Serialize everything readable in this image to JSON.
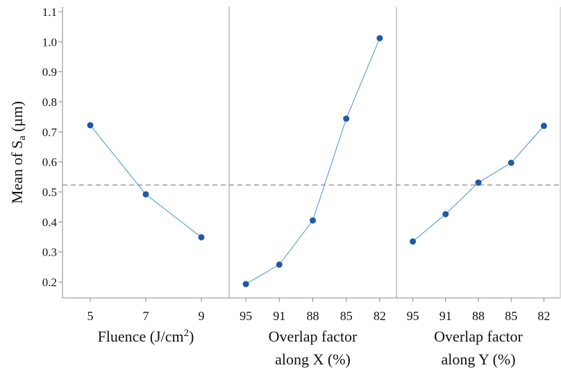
{
  "chart_data": [
    {
      "type": "line",
      "categories": [
        "5",
        "7",
        "9"
      ],
      "values": [
        0.722,
        0.492,
        0.349
      ],
      "x_label": [
        [
          {
            "text": "Fluence (J/cm"
          },
          {
            "text": "2",
            "shift": "super"
          },
          {
            "text": ")"
          }
        ]
      ],
      "y_label": [
        {
          "text": "Mean of S"
        },
        {
          "text": "a",
          "shift": "sub"
        },
        {
          "text": " (µm)"
        }
      ],
      "ylim": [
        0.147,
        1.116
      ],
      "yticks": [
        0.2,
        0.3,
        0.4,
        0.5,
        0.6,
        0.7,
        0.8,
        0.9,
        {
          "value": 1,
          "label": "1.0"
        },
        1.1
      ],
      "reference_line": 0.523,
      "color": "#1f5aa6",
      "line_color": "#4a8fd6"
    },
    {
      "type": "line",
      "categories": [
        "95",
        "91",
        "88",
        "85",
        "82"
      ],
      "values": [
        0.193,
        0.258,
        0.405,
        0.744,
        1.012
      ],
      "x_label": [
        [
          {
            "text": "Overlap factor"
          }
        ],
        [
          {
            "text": "along X (%)"
          }
        ]
      ],
      "color": "#1f5aa6",
      "line_color": "#4a8fd6"
    },
    {
      "type": "line",
      "categories": [
        "95",
        "91",
        "88",
        "85",
        "82"
      ],
      "values": [
        0.335,
        0.426,
        0.531,
        0.597,
        0.72
      ],
      "x_label": [
        [
          {
            "text": "Overlap factor"
          }
        ],
        [
          {
            "text": "along Y (%)"
          }
        ]
      ],
      "color": "#1f5aa6",
      "line_color": "#4a8fd6"
    }
  ]
}
